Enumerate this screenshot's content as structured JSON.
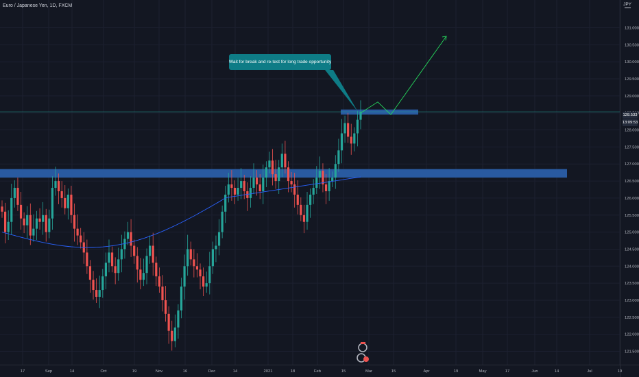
{
  "header": {
    "title": "Euro / Japanese Yen, 1D, FXCM",
    "currency": "JPY"
  },
  "callout": {
    "text": "Wait for break and re-test for long trade opportunity"
  },
  "price_labels": {
    "last": "128.533",
    "countdown": "13:09:53"
  },
  "colors": {
    "background": "#131722",
    "up": "#26a69a",
    "down": "#ef5350",
    "ma": "#2962ff",
    "zone": "#2a5ea8",
    "arrow": "#26d95c",
    "callout": "#0e7c86",
    "price_line": "#26a69a"
  },
  "chart_data": {
    "type": "candlestick",
    "symbol": "Euro / Japanese Yen",
    "interval": "1D",
    "source": "FXCM",
    "y_ticks": [
      121.5,
      122.0,
      122.5,
      123.0,
      123.5,
      124.0,
      124.5,
      125.0,
      125.5,
      126.0,
      126.5,
      127.0,
      127.5,
      128.0,
      128.5,
      129.0,
      129.5,
      130.0,
      130.5,
      131.0
    ],
    "y_tick_labels": [
      "121.500",
      "122.000",
      "122.500",
      "123.000",
      "123.500",
      "124.000",
      "124.500",
      "125.000",
      "125.500",
      "126.000",
      "126.500",
      "127.000",
      "127.500",
      "128.000",
      "128.500",
      "129.000",
      "129.500",
      "130.000",
      "130.500",
      "131.000"
    ],
    "x_tick_labels": [
      "17",
      "Sep",
      "14",
      "Oct",
      "19",
      "Nov",
      "16",
      "Dec",
      "14",
      "2021",
      "18",
      "Feb",
      "15",
      "Mar",
      "15",
      "Apr",
      "19",
      "May",
      "17",
      "Jun",
      "14",
      "Jul",
      "19"
    ],
    "last_price": 128.533,
    "closes": [
      125.6,
      125.0,
      125.3,
      126.0,
      126.3,
      125.8,
      125.4,
      125.2,
      125.5,
      124.9,
      125.1,
      125.4,
      125.3,
      125.5,
      125.0,
      125.4,
      126.3,
      126.5,
      126.2,
      126.0,
      125.7,
      126.1,
      125.5,
      125.1,
      124.9,
      124.7,
      124.4,
      124.0,
      123.6,
      123.3,
      123.1,
      123.3,
      123.7,
      124.1,
      124.4,
      124.0,
      123.8,
      124.2,
      124.5,
      124.8,
      125.0,
      124.6,
      124.3,
      123.9,
      123.6,
      123.8,
      124.3,
      124.6,
      124.1,
      123.7,
      123.4,
      123.0,
      122.6,
      122.1,
      121.8,
      122.2,
      122.7,
      123.4,
      124.0,
      124.5,
      124.2,
      124.0,
      123.9,
      123.7,
      123.4,
      123.5,
      124.0,
      124.5,
      124.6,
      125.0,
      125.6,
      126.1,
      126.4,
      126.3,
      126.1,
      126.3,
      126.5,
      126.2,
      126.0,
      126.3,
      126.6,
      126.4,
      126.2,
      126.6,
      126.9,
      127.1,
      126.7,
      126.5,
      126.9,
      127.3,
      126.9,
      126.5,
      126.4,
      126.1,
      125.8,
      125.5,
      125.3,
      125.8,
      126.1,
      126.3,
      126.6,
      126.8,
      126.4,
      126.2,
      126.5,
      126.6,
      127.0,
      127.4,
      127.9,
      128.2,
      127.8,
      127.6,
      127.9,
      128.3,
      128.53
    ],
    "moving_average": {
      "from": 125.0,
      "to": 126.62
    },
    "resistance_zone": [
      128.45,
      128.6
    ],
    "support_zone": [
      126.6,
      126.85
    ],
    "projected_path": [
      128.5,
      128.82,
      128.45,
      130.75
    ]
  }
}
